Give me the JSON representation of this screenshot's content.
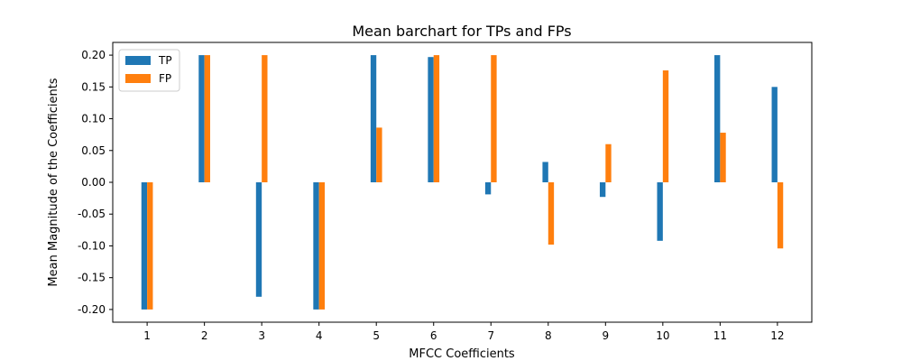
{
  "chart_data": {
    "type": "bar",
    "title": "Mean barchart for TPs and FPs",
    "xlabel": "MFCC Coefficients",
    "ylabel": "Mean Magnitude of the Coefficients",
    "categories": [
      "1",
      "2",
      "3",
      "4",
      "5",
      "6",
      "7",
      "8",
      "9",
      "10",
      "11",
      "12"
    ],
    "series": [
      {
        "name": "TP",
        "color": "#1f77b4",
        "values": [
          -0.2,
          0.2,
          -0.18,
          -0.2,
          0.2,
          0.197,
          -0.019,
          0.032,
          -0.023,
          -0.092,
          0.2,
          0.15
        ]
      },
      {
        "name": "FP",
        "color": "#ff7f0e",
        "values": [
          -0.2,
          0.2,
          0.2,
          -0.2,
          0.086,
          0.2,
          0.2,
          -0.098,
          0.06,
          0.176,
          0.078,
          -0.104
        ]
      }
    ],
    "ylim": [
      -0.22,
      0.22
    ],
    "yticks": [
      -0.2,
      -0.15,
      -0.1,
      -0.05,
      0.0,
      0.05,
      0.1,
      0.15,
      0.2
    ],
    "ytick_labels": [
      "-0.20",
      "-0.15",
      "-0.10",
      "-0.05",
      "0.00",
      "0.05",
      "0.10",
      "0.15",
      "0.20"
    ],
    "xlim": [
      0.4,
      12.6
    ],
    "grid": false,
    "legend": "top-left"
  }
}
